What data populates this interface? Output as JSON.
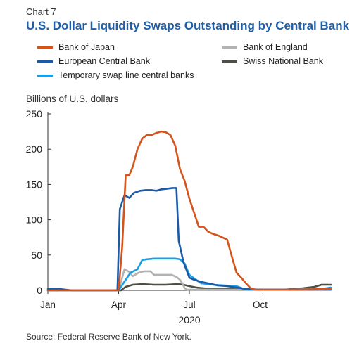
{
  "header": {
    "kicker": "Chart 7",
    "title": "U.S. Dollar Liquidity Swaps Outstanding by Central Bank"
  },
  "footer": {
    "source": "Source: Federal Reserve Bank of New York."
  },
  "chart_data": {
    "type": "line",
    "ylabel": "Billions of U.S. dollars",
    "xlabel": "2020",
    "ylim": [
      0,
      250
    ],
    "yticks": [
      0,
      50,
      100,
      150,
      200,
      250
    ],
    "xlim": [
      0,
      12
    ],
    "xticks": [
      {
        "label": "Jan",
        "value": 0
      },
      {
        "label": "Apr",
        "value": 3
      },
      {
        "label": "Jul",
        "value": 6
      },
      {
        "label": "Oct",
        "value": 9
      }
    ],
    "grid": false,
    "legend_position": "top",
    "series": [
      {
        "name": "Bank of Japan",
        "color": "#d4541c",
        "points": [
          [
            0,
            0
          ],
          [
            2.6,
            0
          ],
          [
            3.0,
            0
          ],
          [
            3.15,
            60
          ],
          [
            3.3,
            163
          ],
          [
            3.45,
            163
          ],
          [
            3.6,
            175
          ],
          [
            3.8,
            200
          ],
          [
            4.0,
            215
          ],
          [
            4.2,
            220
          ],
          [
            4.4,
            220
          ],
          [
            4.6,
            223
          ],
          [
            4.8,
            225
          ],
          [
            5.0,
            224
          ],
          [
            5.2,
            220
          ],
          [
            5.4,
            205
          ],
          [
            5.6,
            172
          ],
          [
            5.8,
            155
          ],
          [
            6.0,
            130
          ],
          [
            6.2,
            110
          ],
          [
            6.4,
            90
          ],
          [
            6.6,
            90
          ],
          [
            6.8,
            83
          ],
          [
            7.0,
            80
          ],
          [
            7.2,
            78
          ],
          [
            7.4,
            75
          ],
          [
            7.6,
            72
          ],
          [
            7.8,
            48
          ],
          [
            8.0,
            25
          ],
          [
            8.2,
            18
          ],
          [
            8.4,
            10
          ],
          [
            8.6,
            3
          ],
          [
            8.8,
            1
          ],
          [
            9.2,
            1
          ],
          [
            10,
            1
          ],
          [
            12,
            2
          ]
        ]
      },
      {
        "name": "European Central Bank",
        "color": "#1c5aa6",
        "points": [
          [
            0,
            2
          ],
          [
            0.5,
            2
          ],
          [
            1,
            0
          ],
          [
            2.6,
            0
          ],
          [
            2.95,
            0
          ],
          [
            3.05,
            115
          ],
          [
            3.25,
            135
          ],
          [
            3.45,
            131
          ],
          [
            3.65,
            138
          ],
          [
            3.9,
            141
          ],
          [
            4.15,
            142
          ],
          [
            4.4,
            142
          ],
          [
            4.6,
            141
          ],
          [
            4.8,
            143
          ],
          [
            5.05,
            144
          ],
          [
            5.3,
            145
          ],
          [
            5.45,
            145
          ],
          [
            5.55,
            70
          ],
          [
            5.75,
            40
          ],
          [
            6.0,
            18
          ],
          [
            6.2,
            15
          ],
          [
            6.5,
            12
          ],
          [
            6.8,
            10
          ],
          [
            7.2,
            7
          ],
          [
            7.6,
            6
          ],
          [
            8.0,
            4
          ],
          [
            8.4,
            2
          ],
          [
            9.0,
            1
          ],
          [
            10,
            1
          ],
          [
            12,
            1
          ]
        ]
      },
      {
        "name": "Temporary swap line central banks",
        "color": "#1a9ee6",
        "points": [
          [
            0,
            0
          ],
          [
            2.6,
            0
          ],
          [
            3.0,
            0
          ],
          [
            3.2,
            10
          ],
          [
            3.5,
            25
          ],
          [
            3.8,
            30
          ],
          [
            4.0,
            43
          ],
          [
            4.2,
            44
          ],
          [
            4.5,
            45
          ],
          [
            5.0,
            45
          ],
          [
            5.4,
            45
          ],
          [
            5.6,
            44
          ],
          [
            5.8,
            38
          ],
          [
            6.0,
            22
          ],
          [
            6.2,
            17
          ],
          [
            6.5,
            10
          ],
          [
            7.0,
            8
          ],
          [
            7.5,
            7
          ],
          [
            8.0,
            6
          ],
          [
            8.3,
            2
          ],
          [
            8.6,
            1
          ],
          [
            10,
            1
          ],
          [
            11,
            2
          ],
          [
            11.6,
            2
          ],
          [
            12,
            4
          ]
        ]
      },
      {
        "name": "Bank of England",
        "color": "#b3b3b3",
        "points": [
          [
            0,
            0
          ],
          [
            2.6,
            0
          ],
          [
            3.0,
            0
          ],
          [
            3.1,
            12
          ],
          [
            3.25,
            30
          ],
          [
            3.45,
            26
          ],
          [
            3.6,
            20
          ],
          [
            3.85,
            25
          ],
          [
            4.1,
            27
          ],
          [
            4.35,
            27
          ],
          [
            4.5,
            22
          ],
          [
            4.75,
            22
          ],
          [
            5.0,
            22
          ],
          [
            5.25,
            22
          ],
          [
            5.45,
            19
          ],
          [
            5.6,
            15
          ],
          [
            5.7,
            10
          ],
          [
            5.8,
            3
          ],
          [
            5.9,
            1
          ],
          [
            12,
            1
          ]
        ]
      },
      {
        "name": "Swiss National Bank",
        "color": "#4c4f44",
        "points": [
          [
            0,
            0
          ],
          [
            2.6,
            0
          ],
          [
            3.1,
            0
          ],
          [
            3.3,
            5
          ],
          [
            3.6,
            8
          ],
          [
            4.0,
            9
          ],
          [
            4.5,
            8
          ],
          [
            5.0,
            8
          ],
          [
            5.5,
            9
          ],
          [
            5.75,
            8
          ],
          [
            6.0,
            6
          ],
          [
            6.3,
            4
          ],
          [
            6.6,
            3
          ],
          [
            7.0,
            2
          ],
          [
            8.0,
            2
          ],
          [
            9.0,
            1
          ],
          [
            10,
            1
          ],
          [
            10.8,
            3
          ],
          [
            11.3,
            5
          ],
          [
            11.6,
            8
          ],
          [
            12,
            8
          ]
        ]
      }
    ]
  }
}
